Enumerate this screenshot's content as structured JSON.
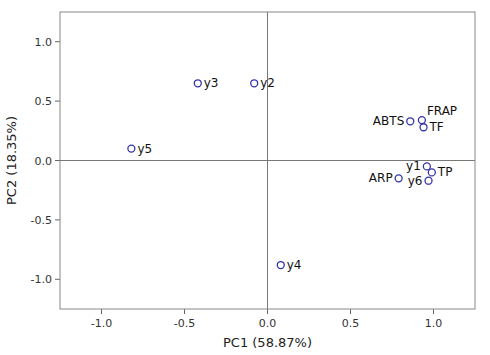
{
  "chart_data": {
    "type": "scatter",
    "xlabel": "PC1 (58.87%)",
    "ylabel": "PC2 (18.35%)",
    "labels": [
      "y1",
      "y2",
      "y3",
      "y4",
      "y5",
      "y6",
      "ABTS",
      "FRAP",
      "TF",
      "ARP",
      "TP"
    ],
    "x": [
      0.96,
      -0.08,
      -0.42,
      0.08,
      -0.82,
      0.97,
      0.86,
      0.93,
      0.94,
      0.79,
      0.99
    ],
    "values": [
      -0.05,
      0.65,
      0.65,
      -0.88,
      0.1,
      -0.17,
      0.33,
      0.34,
      0.28,
      -0.15,
      -0.1
    ],
    "color": "#3333aa",
    "marker": "circle-open",
    "xlim": [
      -1.25,
      1.25
    ],
    "ylim": [
      -1.25,
      1.25
    ],
    "xticks": [
      {
        "value": -1.0,
        "label": "-1.0"
      },
      -0.5,
      {
        "value": 0.0,
        "label": "0.0"
      },
      0.5,
      {
        "value": 1.0,
        "label": "1.0"
      }
    ],
    "yticks": [
      {
        "value": -1.0,
        "label": "-1.0"
      },
      -0.5,
      {
        "value": 0.0,
        "label": "0.0"
      },
      0.5,
      {
        "value": 1.0,
        "label": "1.0"
      }
    ],
    "grid": false
  }
}
